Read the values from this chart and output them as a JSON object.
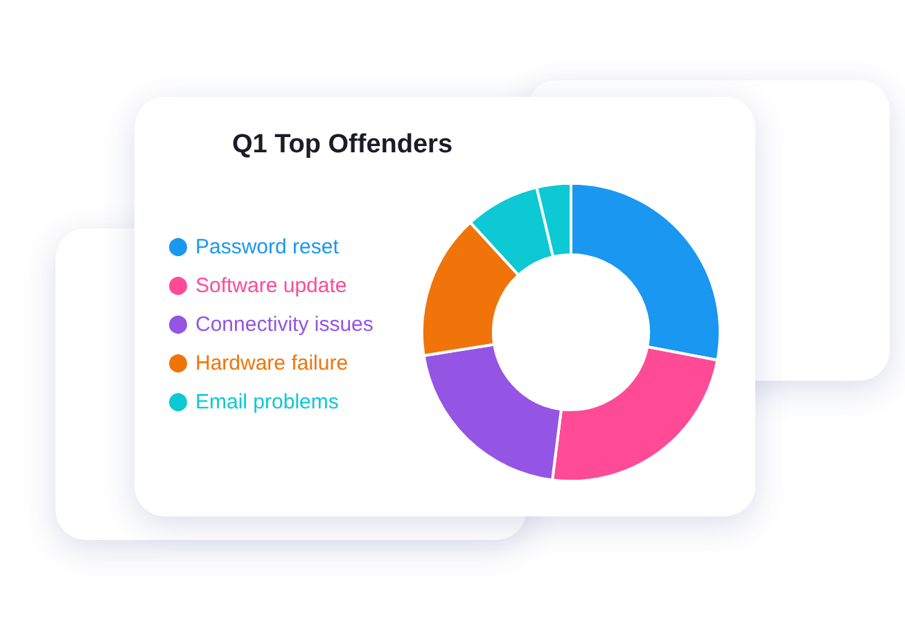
{
  "chart_data": {
    "type": "donut",
    "title": "Q1 Top Offenders",
    "categories": [
      "Password reset",
      "Software update",
      "Connectivity issues",
      "Hardware failure",
      "Email problems",
      null
    ],
    "values": [
      28,
      24,
      20.5,
      15.7,
      8.1,
      3.7
    ],
    "colors": [
      "#1a97f0",
      "#ff4a96",
      "#9454e4",
      "#f07409",
      "#0cc9d4",
      "#0cc9d4"
    ],
    "legend": "left"
  }
}
